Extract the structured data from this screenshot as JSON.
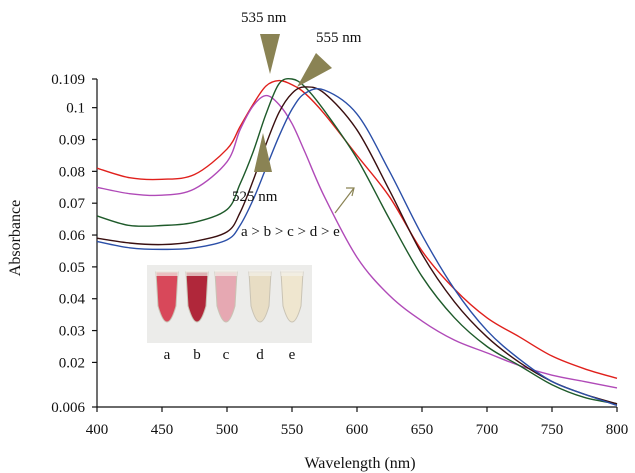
{
  "chart_data": {
    "type": "line",
    "title": "",
    "xlabel": "Wavelength (nm)",
    "ylabel": "Absorbance",
    "xlim": [
      400,
      800
    ],
    "ylim": [
      0.006,
      0.109
    ],
    "x_ticks": [
      400,
      450,
      500,
      550,
      600,
      650,
      700,
      750,
      800
    ],
    "y_ticks": [
      0.006,
      0.02,
      0.03,
      0.04,
      0.05,
      0.06,
      0.07,
      0.08,
      0.09,
      0.1,
      0.109
    ],
    "y_tick_labels": [
      "0.006",
      "0.02",
      "0.03",
      "0.04",
      "0.05",
      "0.06",
      "0.07",
      "0.08",
      "0.09",
      "0.1",
      "0.109"
    ],
    "grid": false,
    "x": [
      400,
      425,
      450,
      475,
      500,
      510,
      520,
      530,
      540,
      550,
      560,
      575,
      600,
      625,
      650,
      675,
      700,
      725,
      750,
      775,
      800
    ],
    "series": [
      {
        "color": "#e0201c",
        "values": [
          0.081,
          0.078,
          0.0775,
          0.079,
          0.087,
          0.094,
          0.101,
          0.1068,
          0.1085,
          0.1072,
          0.1045,
          0.098,
          0.085,
          0.072,
          0.055,
          0.043,
          0.034,
          0.028,
          0.022,
          0.018,
          0.015
        ]
      },
      {
        "color": "#b04ab8",
        "values": [
          0.075,
          0.073,
          0.0725,
          0.0745,
          0.083,
          0.093,
          0.1005,
          0.1038,
          0.101,
          0.095,
          0.086,
          0.072,
          0.053,
          0.041,
          0.033,
          0.027,
          0.023,
          0.019,
          0.016,
          0.014,
          0.012
        ]
      },
      {
        "color": "#1e5a2a",
        "values": [
          0.066,
          0.063,
          0.063,
          0.064,
          0.068,
          0.076,
          0.086,
          0.098,
          0.1075,
          0.109,
          0.1065,
          0.099,
          0.084,
          0.065,
          0.047,
          0.034,
          0.025,
          0.019,
          0.013,
          0.009,
          0.007
        ]
      },
      {
        "color": "#3a0f10",
        "values": [
          0.059,
          0.0575,
          0.057,
          0.058,
          0.061,
          0.067,
          0.077,
          0.0885,
          0.0985,
          0.1045,
          0.1065,
          0.1045,
          0.093,
          0.074,
          0.054,
          0.039,
          0.028,
          0.02,
          0.014,
          0.01,
          0.007
        ]
      },
      {
        "color": "#2b4fa8",
        "values": [
          0.058,
          0.056,
          0.0555,
          0.056,
          0.0585,
          0.063,
          0.071,
          0.081,
          0.091,
          0.0995,
          0.1045,
          0.1055,
          0.098,
          0.08,
          0.06,
          0.043,
          0.03,
          0.021,
          0.014,
          0.01,
          0.0065
        ]
      }
    ],
    "annotations": {
      "peak_535": {
        "text": "535 nm",
        "x": 535
      },
      "peak_555": {
        "text": "555 nm",
        "x": 555
      },
      "peak_525": {
        "text": "525 nm",
        "x": 525
      },
      "order": {
        "text": "a > b > c > d > e"
      }
    },
    "inset_tubes": {
      "labels": [
        "a",
        "b",
        "c",
        "d",
        "e"
      ],
      "colors": [
        "#d8485a",
        "#b0273a",
        "#e6a8b2",
        "#e8ddc4",
        "#efe6cf"
      ]
    },
    "colors": {
      "axis": "#111111",
      "arrow": "#8a8354"
    }
  }
}
